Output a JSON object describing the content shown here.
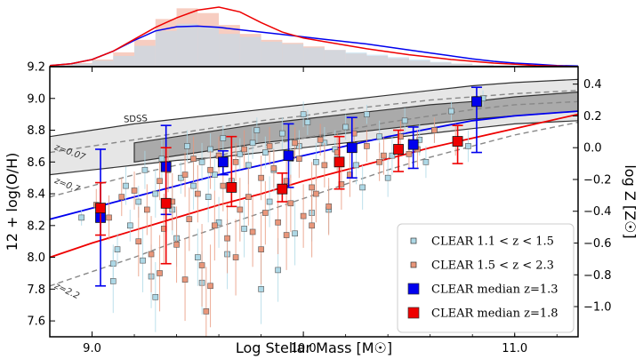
{
  "chart_data": {
    "type": "scatter",
    "xlabel": "Log Stellar Mass [M☉]",
    "ylabel": "12 + log(O/H)",
    "y2label": "log Z [Z☉]",
    "xlim": [
      8.8,
      11.3
    ],
    "ylim": [
      7.5,
      9.2
    ],
    "xticks": [
      "9.0",
      "10.0",
      "11.0"
    ],
    "xtick_values": [
      9.0,
      10.0,
      11.0
    ],
    "yticks": [
      "7.6",
      "7.8",
      "8.0",
      "8.2",
      "8.4",
      "8.6",
      "8.8",
      "9.0",
      "9.2"
    ],
    "ytick_values": [
      7.6,
      7.8,
      8.0,
      8.2,
      8.4,
      8.6,
      8.8,
      9.0,
      9.2
    ],
    "y2ticks": [
      "0.4",
      "0.2",
      "0.0",
      "−0.2",
      "−0.4",
      "−0.6",
      "−0.8",
      "−1.0"
    ],
    "y2tick_values": [
      0.4,
      0.2,
      0.0,
      -0.2,
      -0.4,
      -0.6,
      -0.8,
      -1.0
    ],
    "solar_oh": 8.69,
    "annotations": [
      {
        "text": "SDSS",
        "x": 9.15,
        "y": 8.85,
        "rotate": -3
      },
      {
        "text": "z=0.07",
        "x": 8.82,
        "y": 8.68,
        "rotate": 20
      },
      {
        "text": "z=0.7",
        "x": 8.82,
        "y": 8.47,
        "rotate": 22
      },
      {
        "text": "z=2.2",
        "x": 8.82,
        "y": 7.81,
        "rotate": 26
      }
    ],
    "legend": {
      "position": "bottom-right",
      "entries": [
        {
          "label": "CLEAR 1.1 < z < 1.5",
          "color": "#add8e6",
          "marker": "small-square"
        },
        {
          "label": "CLEAR 1.5 < z < 2.3",
          "color": "#e9967a",
          "marker": "small-square"
        },
        {
          "label": "CLEAR median z=1.3",
          "color": "#0000ee",
          "marker": "square"
        },
        {
          "label": "CLEAR median z=1.8",
          "color": "#ee0000",
          "marker": "square"
        }
      ]
    },
    "series": [
      {
        "name": "CLEAR median z=1.3",
        "color": "#0000ee",
        "x": [
          9.04,
          9.35,
          9.62,
          9.93,
          10.23,
          10.52,
          10.82
        ],
        "y": [
          8.25,
          8.57,
          8.6,
          8.64,
          8.69,
          8.71,
          8.98
        ],
        "err_lo": [
          0.43,
          0.3,
          0.08,
          0.2,
          0.19,
          0.15,
          0.32
        ],
        "err_hi": [
          0.43,
          0.26,
          0.07,
          0.2,
          0.19,
          0.11,
          0.09
        ]
      },
      {
        "name": "CLEAR median z=1.8",
        "color": "#ee0000",
        "x": [
          9.04,
          9.35,
          9.66,
          9.9,
          10.17,
          10.45,
          10.73
        ],
        "y": [
          8.31,
          8.34,
          8.44,
          8.43,
          8.6,
          8.68,
          8.73
        ],
        "err_lo": [
          0.17,
          0.38,
          0.12,
          0.08,
          0.17,
          0.14,
          0.14
        ],
        "err_hi": [
          0.16,
          0.35,
          0.32,
          0.1,
          0.16,
          0.12,
          0.1
        ]
      },
      {
        "name": "CLEAR 1.1 < z < 1.5",
        "color": "#add8e6",
        "x": [
          8.95,
          9.1,
          9.12,
          9.18,
          9.22,
          9.25,
          9.3,
          9.33,
          9.38,
          9.42,
          9.45,
          9.48,
          9.52,
          9.55,
          9.58,
          9.62,
          9.66,
          9.7,
          9.74,
          9.78,
          9.82,
          9.86,
          9.9,
          9.94,
          9.98,
          10.02,
          10.06,
          10.1,
          10.15,
          10.2,
          10.25,
          10.3,
          10.36,
          10.42,
          10.48,
          10.55,
          10.62,
          10.7,
          10.78,
          10.85,
          9.28,
          9.5,
          9.72,
          9.96,
          10.12,
          9.4,
          9.6,
          9.84,
          10.04,
          10.28,
          9.16,
          9.36,
          9.56,
          9.76,
          10.0,
          10.4,
          9.24,
          9.64,
          9.88,
          10.58,
          9.1,
          9.3,
          9.52,
          9.8
        ],
        "y": [
          8.25,
          7.96,
          8.05,
          8.2,
          8.35,
          8.55,
          8.4,
          8.62,
          8.3,
          8.5,
          8.7,
          8.45,
          8.6,
          8.38,
          8.52,
          8.75,
          8.48,
          8.65,
          8.58,
          8.8,
          8.66,
          8.55,
          8.78,
          8.62,
          8.7,
          8.85,
          8.6,
          8.72,
          8.68,
          8.82,
          8.58,
          8.9,
          8.76,
          8.64,
          8.86,
          8.74,
          8.8,
          8.92,
          8.7,
          9.0,
          7.88,
          8.0,
          8.18,
          8.15,
          8.3,
          8.12,
          8.22,
          8.35,
          8.28,
          8.44,
          8.45,
          8.58,
          8.68,
          8.72,
          8.9,
          8.5,
          7.98,
          8.02,
          7.92,
          8.6,
          7.85,
          7.75,
          7.84,
          7.8
        ],
        "err": [
          0.05,
          0.12,
          0.1,
          0.1,
          0.1,
          0.12,
          0.15,
          0.12,
          0.16,
          0.1,
          0.1,
          0.15,
          0.12,
          0.16,
          0.1,
          0.08,
          0.14,
          0.1,
          0.12,
          0.08,
          0.1,
          0.14,
          0.1,
          0.12,
          0.1,
          0.08,
          0.12,
          0.1,
          0.12,
          0.08,
          0.12,
          0.06,
          0.1,
          0.12,
          0.08,
          0.1,
          0.08,
          0.06,
          0.1,
          0.05,
          0.2,
          0.18,
          0.18,
          0.2,
          0.15,
          0.18,
          0.16,
          0.16,
          0.18,
          0.14,
          0.12,
          0.12,
          0.1,
          0.1,
          0.08,
          0.12,
          0.2,
          0.22,
          0.2,
          0.1,
          0.2,
          0.22,
          0.2,
          0.22
        ]
      },
      {
        "name": "CLEAR 1.5 < z < 2.3",
        "color": "#e9967a",
        "x": [
          9.02,
          9.08,
          9.14,
          9.2,
          9.26,
          9.32,
          9.38,
          9.44,
          9.5,
          9.56,
          9.62,
          9.68,
          9.74,
          9.8,
          9.86,
          9.92,
          9.98,
          10.04,
          10.1,
          10.16,
          10.22,
          10.3,
          10.38,
          10.46,
          10.54,
          10.62,
          10.72,
          9.22,
          9.34,
          9.46,
          9.58,
          9.7,
          9.82,
          9.94,
          10.06,
          10.18,
          9.28,
          9.4,
          9.52,
          9.64,
          9.76,
          9.88,
          10.0,
          10.12,
          9.36,
          9.48,
          9.6,
          9.72,
          9.84,
          9.96,
          10.08,
          10.24,
          10.36,
          10.5,
          9.32,
          9.44,
          9.56,
          9.68,
          9.8,
          9.92,
          10.04,
          9.54
        ],
        "y": [
          8.33,
          8.25,
          8.38,
          8.42,
          8.3,
          8.48,
          8.35,
          8.52,
          8.4,
          8.55,
          8.45,
          8.6,
          8.38,
          8.5,
          8.56,
          8.48,
          8.62,
          8.44,
          8.58,
          8.66,
          8.52,
          8.7,
          8.64,
          8.76,
          8.68,
          8.8,
          8.74,
          8.1,
          8.18,
          8.24,
          8.2,
          8.3,
          8.28,
          8.34,
          8.4,
          8.46,
          8.02,
          8.08,
          7.95,
          8.12,
          8.16,
          8.22,
          8.26,
          8.32,
          8.55,
          8.62,
          8.64,
          8.68,
          8.7,
          8.72,
          8.74,
          8.78,
          8.6,
          8.65,
          7.9,
          7.86,
          7.82,
          8.0,
          8.05,
          8.14,
          8.2,
          7.66
        ],
        "err": [
          0.1,
          0.14,
          0.12,
          0.12,
          0.16,
          0.12,
          0.18,
          0.14,
          0.18,
          0.12,
          0.16,
          0.12,
          0.18,
          0.14,
          0.12,
          0.16,
          0.12,
          0.16,
          0.14,
          0.12,
          0.14,
          0.1,
          0.12,
          0.1,
          0.12,
          0.08,
          0.1,
          0.22,
          0.22,
          0.2,
          0.22,
          0.2,
          0.2,
          0.18,
          0.18,
          0.16,
          0.24,
          0.24,
          0.26,
          0.22,
          0.22,
          0.2,
          0.2,
          0.18,
          0.14,
          0.14,
          0.12,
          0.12,
          0.12,
          0.1,
          0.1,
          0.1,
          0.12,
          0.1,
          0.24,
          0.26,
          0.26,
          0.24,
          0.22,
          0.22,
          0.2,
          0.28
        ]
      }
    ],
    "fits": [
      {
        "name": "CLEAR z=1.3 fit",
        "color": "#0000ee",
        "x": [
          8.8,
          9.0,
          9.2,
          9.4,
          9.6,
          9.8,
          10.0,
          10.2,
          10.4,
          10.6,
          10.8,
          11.0,
          11.3
        ],
        "y": [
          8.24,
          8.31,
          8.38,
          8.45,
          8.52,
          8.58,
          8.64,
          8.7,
          8.76,
          8.81,
          8.86,
          8.89,
          8.92
        ]
      },
      {
        "name": "CLEAR z=1.8 fit",
        "color": "#ee0000",
        "x": [
          8.8,
          9.0,
          9.2,
          9.4,
          9.6,
          9.8,
          10.0,
          10.2,
          10.4,
          10.6,
          10.8,
          11.0,
          11.3
        ],
        "y": [
          8.0,
          8.09,
          8.17,
          8.25,
          8.33,
          8.4,
          8.48,
          8.55,
          8.62,
          8.69,
          8.75,
          8.81,
          8.9
        ]
      },
      {
        "name": "z=0.07",
        "color": "#888888",
        "dashed": true,
        "x": [
          8.8,
          9.0,
          9.2,
          9.4,
          9.6,
          9.8,
          10.0,
          10.2,
          10.4,
          10.6,
          10.8,
          11.0,
          11.3
        ],
        "y": [
          8.66,
          8.7,
          8.74,
          8.78,
          8.82,
          8.86,
          8.89,
          8.93,
          8.96,
          8.99,
          9.01,
          9.03,
          9.05
        ]
      },
      {
        "name": "z=0.7",
        "color": "#888888",
        "dashed": true,
        "x": [
          8.8,
          9.0,
          9.2,
          9.4,
          9.6,
          9.8,
          10.0,
          10.2,
          10.4,
          10.6,
          10.8,
          11.0,
          11.3
        ],
        "y": [
          8.38,
          8.45,
          8.52,
          8.58,
          8.64,
          8.7,
          8.75,
          8.8,
          8.85,
          8.89,
          8.93,
          8.96,
          8.98
        ]
      },
      {
        "name": "z=2.2",
        "color": "#888888",
        "dashed": true,
        "x": [
          8.8,
          9.0,
          9.2,
          9.4,
          9.6,
          9.8,
          10.0,
          10.2,
          10.4,
          10.6,
          10.8,
          11.0,
          11.3
        ],
        "y": [
          7.82,
          7.91,
          8.0,
          8.1,
          8.19,
          8.28,
          8.37,
          8.46,
          8.55,
          8.63,
          8.7,
          8.77,
          8.85
        ]
      }
    ],
    "bands": [
      {
        "name": "SDSS outer",
        "fill": "#e6e6e6",
        "x": [
          8.8,
          9.0,
          9.2,
          9.4,
          9.6,
          9.8,
          10.0,
          10.2,
          10.4,
          10.6,
          10.8,
          11.0,
          11.3
        ],
        "upper": [
          8.76,
          8.8,
          8.84,
          8.87,
          8.9,
          8.93,
          8.96,
          8.99,
          9.02,
          9.05,
          9.08,
          9.1,
          9.12
        ],
        "lower": [
          8.52,
          8.55,
          8.58,
          8.61,
          8.63,
          8.66,
          8.69,
          8.72,
          8.75,
          8.78,
          8.81,
          8.84,
          8.86
        ]
      },
      {
        "name": "SDSS inner",
        "fill": "#aaaaaa",
        "x": [
          9.2,
          9.4,
          9.6,
          9.8,
          10.0,
          10.2,
          10.4,
          10.6,
          10.8,
          11.0,
          11.3
        ],
        "upper": [
          8.72,
          8.76,
          8.8,
          8.84,
          8.87,
          8.9,
          8.93,
          8.96,
          8.98,
          9.01,
          9.04
        ],
        "lower": [
          8.6,
          8.64,
          8.68,
          8.72,
          8.75,
          8.78,
          8.81,
          8.84,
          8.87,
          8.89,
          8.92
        ]
      }
    ],
    "top_panel": {
      "hist_bins": [
        8.8,
        8.9,
        9.0,
        9.1,
        9.2,
        9.3,
        9.4,
        9.5,
        9.6,
        9.7,
        9.8,
        9.9,
        10.0,
        10.1,
        10.2,
        10.3,
        10.4,
        10.5,
        10.6,
        10.7,
        10.8,
        10.9,
        11.0
      ],
      "hist_blue": [
        0.02,
        0.05,
        0.1,
        0.18,
        0.35,
        0.6,
        0.72,
        0.68,
        0.55,
        0.5,
        0.42,
        0.38,
        0.32,
        0.28,
        0.24,
        0.2,
        0.16,
        0.12,
        0.08,
        0.05,
        0.03,
        0.02
      ],
      "hist_red": [
        0.03,
        0.06,
        0.12,
        0.24,
        0.45,
        0.8,
        0.98,
        0.9,
        0.7,
        0.55,
        0.45,
        0.4,
        0.34,
        0.28,
        0.22,
        0.18,
        0.14,
        0.1,
        0.07,
        0.05,
        0.03,
        0.02
      ],
      "kde_x": [
        8.8,
        8.9,
        9.0,
        9.1,
        9.2,
        9.3,
        9.4,
        9.5,
        9.6,
        9.7,
        9.8,
        9.9,
        10.0,
        10.1,
        10.2,
        10.3,
        10.4,
        10.5,
        10.6,
        10.7,
        10.8,
        10.9,
        11.0,
        11.1,
        11.2,
        11.3
      ],
      "kde_blue": [
        0.02,
        0.05,
        0.12,
        0.26,
        0.44,
        0.6,
        0.67,
        0.68,
        0.66,
        0.62,
        0.58,
        0.54,
        0.5,
        0.46,
        0.42,
        0.38,
        0.33,
        0.28,
        0.23,
        0.18,
        0.13,
        0.09,
        0.06,
        0.04,
        0.02,
        0.01
      ],
      "kde_red": [
        0.02,
        0.05,
        0.12,
        0.26,
        0.46,
        0.66,
        0.82,
        0.95,
        1.0,
        0.92,
        0.74,
        0.58,
        0.48,
        0.42,
        0.36,
        0.3,
        0.25,
        0.2,
        0.16,
        0.12,
        0.09,
        0.06,
        0.04,
        0.02,
        0.01,
        0.0
      ]
    }
  }
}
